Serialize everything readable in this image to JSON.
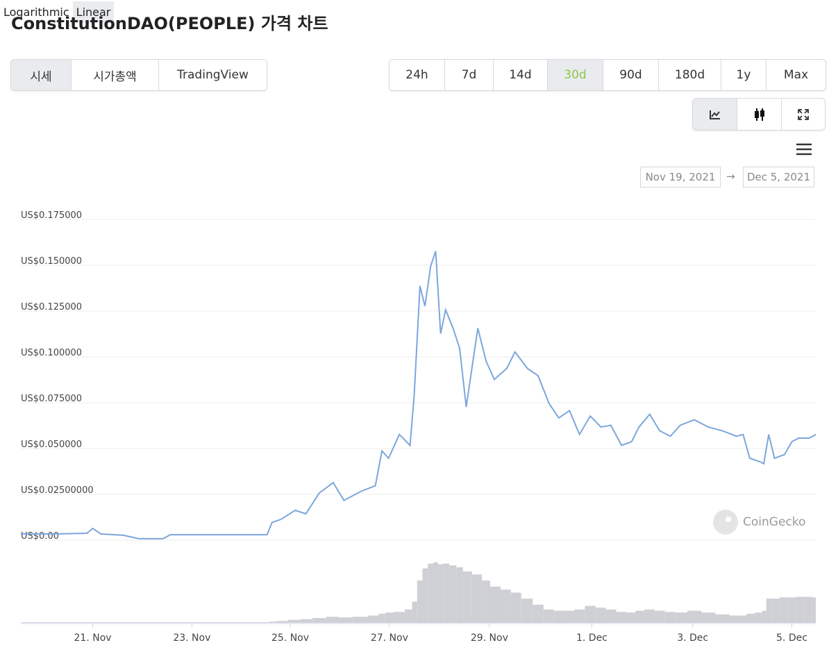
{
  "header": {
    "title": "ConstitutionDAO(PEOPLE) 가격 차트"
  },
  "tabs": {
    "items": [
      "시세",
      "시가총액",
      "TradingView"
    ],
    "active": 0
  },
  "ranges": {
    "items": [
      "24h",
      "7d",
      "14d",
      "30d",
      "90d",
      "180d",
      "1y",
      "Max"
    ],
    "active": 3,
    "active_color": "#8dc647"
  },
  "scale": {
    "options": [
      "Logarithmic",
      "Linear"
    ],
    "active": 1
  },
  "date_range": {
    "from": "Nov 19, 2021",
    "arrow": "→",
    "to": "Dec 5, 2021"
  },
  "watermark": "CoinGecko",
  "chart_data": {
    "type": "line",
    "color": "#7ca6dc",
    "x": [
      0,
      4.2,
      8.0,
      8.7,
      9.7,
      12.4,
      14.3,
      17.2,
      18.1,
      22.7,
      29.8,
      30.4,
      31.5,
      33.2,
      34.5,
      36.1,
      37.8,
      39.1,
      41.2,
      42.9,
      43.7,
      44.5,
      45.8,
      47.1,
      47.6,
      48.3,
      48.9,
      49.6,
      50.2,
      50.8,
      51.4,
      52.3,
      53.1,
      53.9,
      55.3,
      56.3,
      57.3,
      58.8,
      59.8,
      61.3,
      62.6,
      63.9,
      65.1,
      66.4,
      67.6,
      68.9,
      70.2,
      71.4,
      72.7,
      73.9,
      74.8,
      76.1,
      77.3,
      78.6,
      79.8,
      81.5,
      83.2,
      84.9,
      86.6,
      87.4,
      88.2,
      89.5,
      89.9,
      90.5,
      91.2,
      92.4,
      93.3,
      94.1,
      95.4,
      96.2
    ],
    "values": [
      0.0034,
      0.0034,
      0.0038,
      0.0064,
      0.0034,
      0.0027,
      0.0008,
      0.0008,
      0.003,
      0.003,
      0.003,
      0.0097,
      0.0114,
      0.0163,
      0.0144,
      0.0257,
      0.0314,
      0.0217,
      0.0267,
      0.0297,
      0.0487,
      0.0447,
      0.0577,
      0.0517,
      0.0787,
      0.1387,
      0.1277,
      0.1497,
      0.1577,
      0.1127,
      0.1257,
      0.1157,
      0.1047,
      0.0727,
      0.1157,
      0.0977,
      0.0877,
      0.0937,
      0.1027,
      0.0937,
      0.0897,
      0.0747,
      0.0667,
      0.0707,
      0.0577,
      0.0677,
      0.0617,
      0.0627,
      0.0517,
      0.0537,
      0.0617,
      0.0687,
      0.0597,
      0.0567,
      0.0627,
      0.0657,
      0.0617,
      0.0597,
      0.0567,
      0.0577,
      0.0447,
      0.0427,
      0.0417,
      0.0577,
      0.0447,
      0.0467,
      0.0537,
      0.0557,
      0.0557,
      0.0577
    ],
    "volume": {
      "color": "#cfcfd6",
      "ylim": [
        0,
        100
      ],
      "values": [
        1,
        1,
        1,
        1,
        1,
        1,
        1,
        1,
        1,
        1,
        1,
        2,
        3,
        5,
        6,
        8,
        10,
        9,
        10,
        12,
        15,
        17,
        18,
        22,
        35,
        70,
        90,
        98,
        100,
        97,
        98,
        95,
        92,
        85,
        80,
        70,
        60,
        55,
        50,
        40,
        30,
        22,
        20,
        20,
        22,
        28,
        25,
        22,
        18,
        17,
        20,
        22,
        20,
        18,
        17,
        20,
        17,
        14,
        12,
        12,
        15,
        17,
        20,
        40,
        40,
        42,
        42,
        43,
        43,
        42
      ]
    },
    "xlim": [
      0,
      96.2
    ],
    "xticks": [
      {
        "value": 8.7,
        "label": "21. Nov"
      },
      {
        "value": 20.7,
        "label": "23. Nov"
      },
      {
        "value": 32.6,
        "label": "25. Nov"
      },
      {
        "value": 44.6,
        "label": "27. Nov"
      },
      {
        "value": 56.7,
        "label": "29. Nov"
      },
      {
        "value": 69.1,
        "label": "1. Dec"
      },
      {
        "value": 81.3,
        "label": "3. Dec"
      },
      {
        "value": 93.3,
        "label": "5. Dec"
      }
    ],
    "ylim": [
      0,
      0.175
    ],
    "yticks": [
      {
        "value": 0,
        "label": "US$0.00"
      },
      {
        "value": 0.025,
        "label": "US$0.02500000"
      },
      {
        "value": 0.05,
        "label": "US$0.050000"
      },
      {
        "value": 0.075,
        "label": "US$0.075000"
      },
      {
        "value": 0.1,
        "label": "US$0.100000"
      },
      {
        "value": 0.125,
        "label": "US$0.125000"
      },
      {
        "value": 0.15,
        "label": "US$0.150000"
      },
      {
        "value": 0.175,
        "label": "US$0.175000"
      }
    ],
    "grid": true,
    "log_scale": false
  }
}
